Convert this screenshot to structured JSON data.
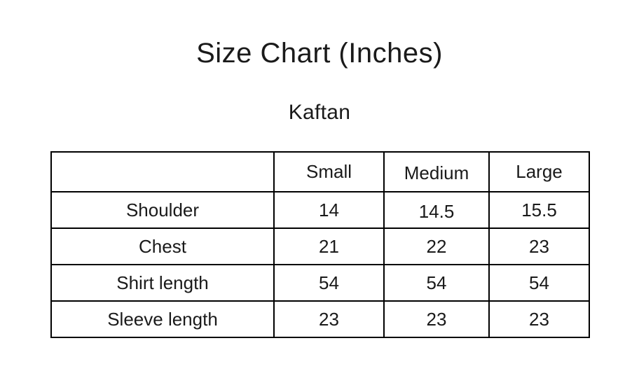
{
  "page": {
    "title": "Size Chart (Inches)",
    "subtitle": "Kaftan"
  },
  "chart_data": {
    "type": "table",
    "title": "Size Chart (Inches)",
    "subtitle": "Kaftan",
    "unit": "Inches",
    "columns": [
      "",
      "Small",
      "Medium",
      "Large"
    ],
    "rows": [
      {
        "label": "Shoulder",
        "values": [
          "14",
          "14.5",
          "15.5"
        ]
      },
      {
        "label": "Chest",
        "values": [
          "21",
          "22",
          "23"
        ]
      },
      {
        "label": "Shirt length",
        "values": [
          "54",
          "54",
          "54"
        ]
      },
      {
        "label": "Sleeve length",
        "values": [
          "23",
          "23",
          "23"
        ]
      }
    ]
  },
  "colors": {
    "background": "#ffffff",
    "text": "#1a1a1a",
    "border": "#000000"
  }
}
